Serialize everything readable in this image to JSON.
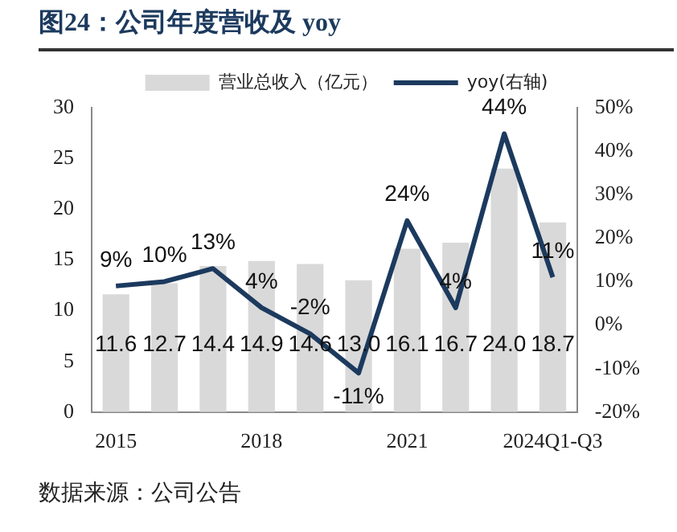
{
  "chart_data": {
    "type": "bar",
    "title": "图24：公司年度营收及 yoy",
    "categories": [
      "2015",
      null,
      null,
      "2018",
      null,
      null,
      "2021",
      null,
      null,
      "2024Q1-Q3"
    ],
    "series": [
      {
        "name": "营业总收入（亿元）",
        "color": "#d9d9d9",
        "values": [
          11.6,
          12.7,
          14.4,
          14.9,
          14.6,
          13.0,
          16.1,
          16.7,
          24.0,
          18.7
        ],
        "value_labels": [
          "11.6",
          "12.7",
          "14.4",
          "14.9",
          "14.6",
          "13.0",
          "16.1",
          "16.7",
          "24.0",
          "18.7"
        ]
      },
      {
        "name": "yoy(右轴)",
        "type": "line",
        "axis": "y2",
        "color": "#1c3a5e",
        "values": [
          9,
          10,
          13,
          4,
          -2,
          -11,
          24,
          4,
          44,
          11
        ],
        "value_labels": [
          "9%",
          "10%",
          "13%",
          "4%",
          "-2%",
          "-11%",
          "24%",
          "4%",
          "44%",
          "11%"
        ]
      }
    ],
    "ylim": [
      0,
      30
    ],
    "yticks": [
      0,
      5,
      10,
      15,
      20,
      25,
      30
    ],
    "y2lim": [
      -20,
      50
    ],
    "y2ticks": [
      {
        "value": -20,
        "label": "-20%"
      },
      {
        "value": -10,
        "label": "-10%"
      },
      {
        "value": 0,
        "label": "0%"
      },
      {
        "value": 10,
        "label": "10%"
      },
      {
        "value": 20,
        "label": "20%"
      },
      {
        "value": 30,
        "label": "30%"
      },
      {
        "value": 40,
        "label": "40%"
      },
      {
        "value": 50,
        "label": "50%"
      }
    ],
    "legend": "top",
    "grid": false,
    "marker": "none",
    "line_style": "solid",
    "annotations": [
      "数据来源：公司公告"
    ]
  }
}
